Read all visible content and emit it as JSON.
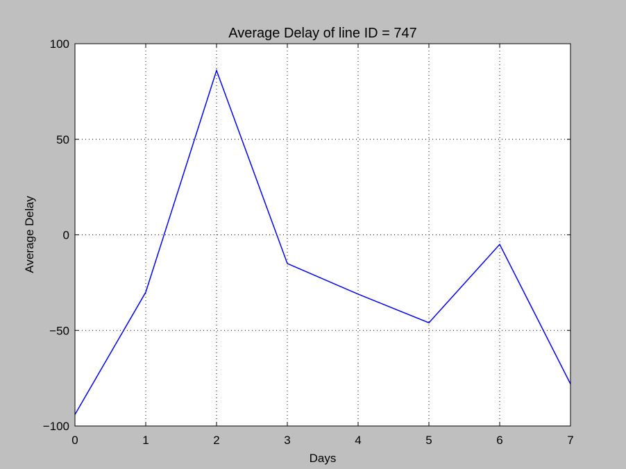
{
  "chart_data": {
    "type": "line",
    "title": "Average Delay of line ID = 747",
    "xlabel": "Days",
    "ylabel": "Average Delay",
    "xlim": [
      0,
      7
    ],
    "ylim": [
      -100,
      100
    ],
    "xticks": [
      0,
      1,
      2,
      3,
      4,
      5,
      6,
      7
    ],
    "yticks": [
      -100,
      -50,
      0,
      50,
      100
    ],
    "xtick_labels": [
      "0",
      "1",
      "2",
      "3",
      "4",
      "5",
      "6",
      "7"
    ],
    "ytick_labels": [
      "−100",
      "−50",
      "0",
      "50",
      "100"
    ],
    "grid": true,
    "series": [
      {
        "x": [
          0,
          1,
          2,
          3,
          4,
          5,
          6,
          7
        ],
        "values": [
          -94,
          -30,
          86,
          -15,
          -31,
          -46,
          -5,
          -78
        ],
        "color": "#0000ff"
      }
    ]
  },
  "colors": {
    "figure_background": "#bfbfbf",
    "plot_background": "#ffffff",
    "grid": "#000000",
    "line": "#0000ff"
  }
}
